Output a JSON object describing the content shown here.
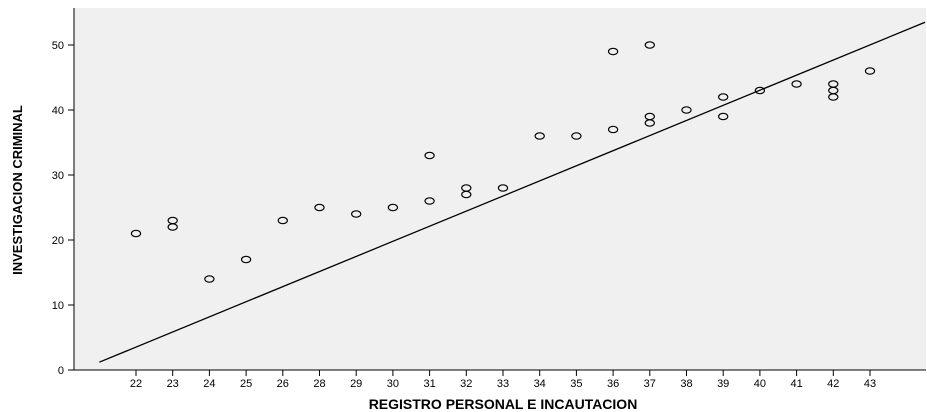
{
  "chart_data": {
    "type": "scatter",
    "title": "",
    "xlabel": "REGISTRO PERSONAL E INCAUTACION",
    "ylabel": "INVESTIGACION CRIMINAL",
    "x_categories": [
      "22",
      "23",
      "24",
      "25",
      "26",
      "28",
      "29",
      "30",
      "31",
      "32",
      "33",
      "34",
      "35",
      "36",
      "37",
      "38",
      "39",
      "40",
      "41",
      "42",
      "43"
    ],
    "ylim": [
      0,
      55
    ],
    "yticks": [
      0,
      10,
      20,
      30,
      40,
      50
    ],
    "grid": false,
    "legend": "none",
    "plot_background": "#f0f0f0",
    "points": [
      {
        "x": "22",
        "y": 21
      },
      {
        "x": "23",
        "y": 23
      },
      {
        "x": "23",
        "y": 22
      },
      {
        "x": "24",
        "y": 14
      },
      {
        "x": "25",
        "y": 17
      },
      {
        "x": "26",
        "y": 23
      },
      {
        "x": "28",
        "y": 25
      },
      {
        "x": "29",
        "y": 24
      },
      {
        "x": "30",
        "y": 25
      },
      {
        "x": "31",
        "y": 33
      },
      {
        "x": "31",
        "y": 26
      },
      {
        "x": "32",
        "y": 28
      },
      {
        "x": "32",
        "y": 27
      },
      {
        "x": "33",
        "y": 28
      },
      {
        "x": "34",
        "y": 36
      },
      {
        "x": "35",
        "y": 36
      },
      {
        "x": "36",
        "y": 49
      },
      {
        "x": "36",
        "y": 37
      },
      {
        "x": "37",
        "y": 50
      },
      {
        "x": "37",
        "y": 39
      },
      {
        "x": "37",
        "y": 38
      },
      {
        "x": "38",
        "y": 40
      },
      {
        "x": "39",
        "y": 42
      },
      {
        "x": "39",
        "y": 39
      },
      {
        "x": "40",
        "y": 43
      },
      {
        "x": "41",
        "y": 44
      },
      {
        "x": "42",
        "y": 44
      },
      {
        "x": "42",
        "y": 43
      },
      {
        "x": "42",
        "y": 42
      },
      {
        "x": "43",
        "y": 46
      }
    ],
    "fit_line": {
      "start": {
        "x_index": -1.0,
        "y": 1.2
      },
      "end": {
        "x_index": 21.5,
        "y": 53.5
      }
    }
  }
}
